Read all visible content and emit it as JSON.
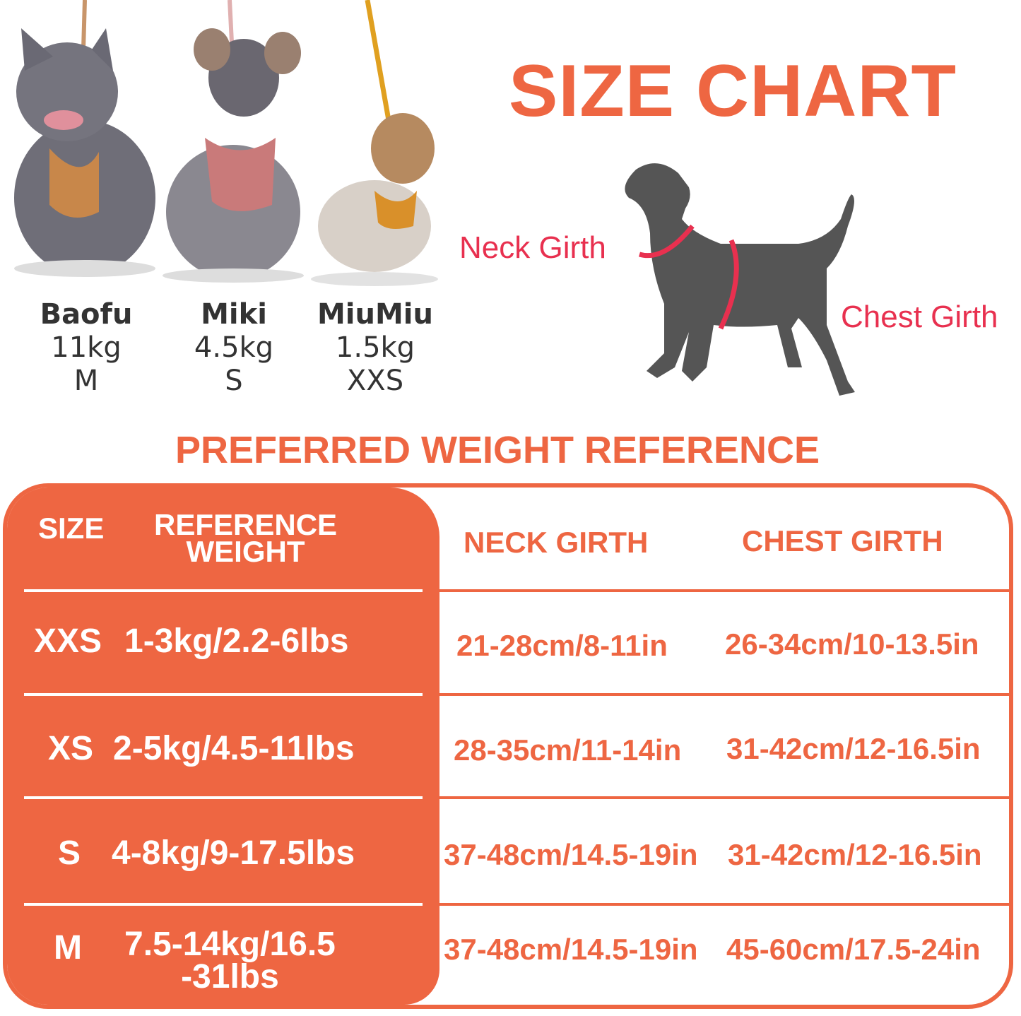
{
  "colors": {
    "accent": "#ee6642",
    "girth_marker": "#e8304f",
    "silhouette": "#555555"
  },
  "title": "SIZE CHART",
  "dogs": [
    {
      "name": "Baofu",
      "weight": "11kg",
      "size": "M"
    },
    {
      "name": "Miki",
      "weight": "4.5kg",
      "size": "S"
    },
    {
      "name": "MiuMiu",
      "weight": "1.5kg",
      "size": "XXS"
    }
  ],
  "diagram": {
    "neck_label": "Neck Girth",
    "chest_label": "Chest Girth",
    "icon": "dog-silhouette-icon"
  },
  "subtitle": "PREFERRED WEIGHT REFERENCE",
  "table": {
    "headers": {
      "size": "SIZE",
      "weight_line1": "REFERENCE",
      "weight_line2": "WEIGHT",
      "neck": "NECK GIRTH",
      "chest": "CHEST GIRTH"
    },
    "rows": [
      {
        "size": "XXS",
        "weight": "1-3kg/2.2-6lbs",
        "neck": "21-28cm/8-11in",
        "chest": "26-34cm/10-13.5in"
      },
      {
        "size": "XS",
        "weight": "2-5kg/4.5-11lbs",
        "neck": "28-35cm/11-14in",
        "chest": "31-42cm/12-16.5in"
      },
      {
        "size": "S",
        "weight": "4-8kg/9-17.5lbs",
        "neck": "37-48cm/14.5-19in",
        "chest": "31-42cm/12-16.5in"
      },
      {
        "size": "M",
        "weight": "7.5-14kg/16.5",
        "weight_line2": "-31lbs",
        "neck": "37-48cm/14.5-19in",
        "chest": "45-60cm/17.5-24in"
      }
    ]
  }
}
